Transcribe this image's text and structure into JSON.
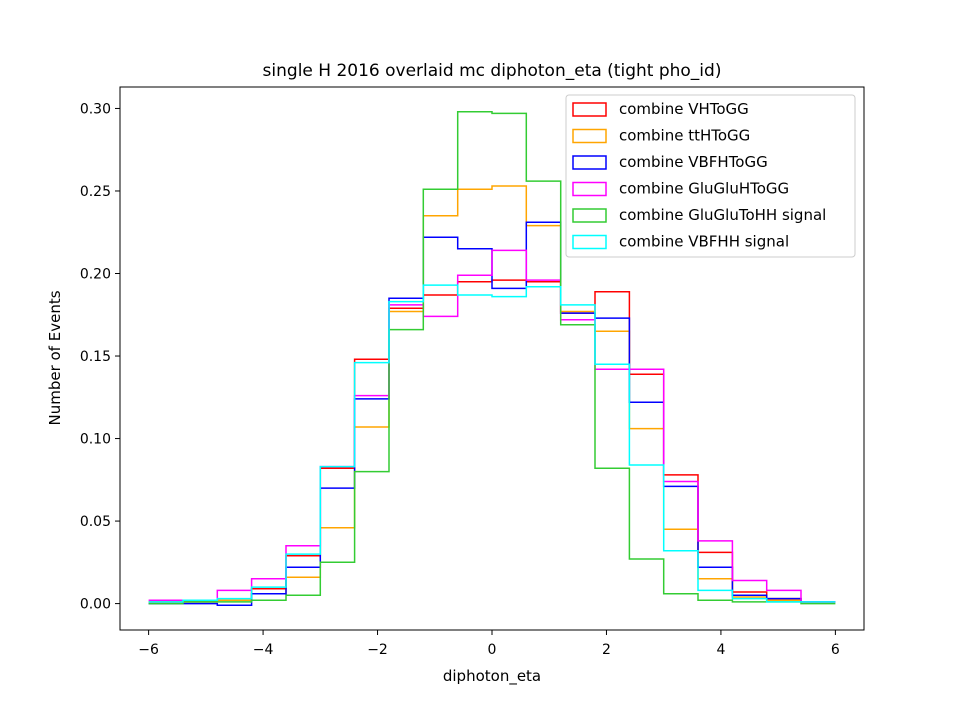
{
  "chart_data": {
    "type": "line",
    "style": "step-histogram",
    "title": "single H 2016 overlaid mc diphoton_eta (tight pho_id)",
    "xlabel": "diphoton_eta",
    "ylabel": "Number of Events",
    "xlim": [
      -6.5,
      6.5
    ],
    "ylim": [
      -0.016,
      0.313
    ],
    "xticks": [
      -6,
      -4,
      -2,
      0,
      2,
      4,
      6
    ],
    "xtick_labels": [
      "−6",
      "−4",
      "−2",
      "0",
      "2",
      "4",
      "6"
    ],
    "yticks": [
      0.0,
      0.05,
      0.1,
      0.15,
      0.2,
      0.25,
      0.3
    ],
    "ytick_labels": [
      "0.00",
      "0.05",
      "0.10",
      "0.15",
      "0.20",
      "0.25",
      "0.30"
    ],
    "bin_edges": [
      -6.0,
      -5.4,
      -4.8,
      -4.2,
      -3.6,
      -3.0,
      -2.4,
      -1.8,
      -1.2,
      -0.6,
      0.0,
      0.6,
      1.2,
      1.8,
      2.4,
      3.0,
      3.6,
      4.2,
      4.8,
      5.4,
      6.0
    ],
    "legend_position": "top-right",
    "grid": false,
    "series": [
      {
        "name": "combine VHToGG",
        "color": "#ff0000",
        "values": [
          0.001,
          0.001,
          0.002,
          0.009,
          0.029,
          0.082,
          0.148,
          0.179,
          0.187,
          0.195,
          0.196,
          0.195,
          0.176,
          0.189,
          0.139,
          0.078,
          0.031,
          0.007,
          0.003,
          0.001
        ]
      },
      {
        "name": "combine ttHToGG",
        "color": "#ffa500",
        "values": [
          0.001,
          0.001,
          0.002,
          0.006,
          0.016,
          0.046,
          0.107,
          0.177,
          0.235,
          0.251,
          0.253,
          0.229,
          0.177,
          0.165,
          0.106,
          0.045,
          0.015,
          0.004,
          0.002,
          0.001
        ]
      },
      {
        "name": "combine VBFHToGG",
        "color": "#0000ff",
        "values": [
          0.0,
          0.0,
          -0.001,
          0.006,
          0.022,
          0.07,
          0.124,
          0.185,
          0.222,
          0.215,
          0.191,
          0.231,
          0.176,
          0.173,
          0.122,
          0.071,
          0.022,
          0.005,
          0.003,
          0.001
        ]
      },
      {
        "name": "combine GluGluHToGG",
        "color": "#ff00ff",
        "values": [
          0.002,
          0.002,
          0.008,
          0.015,
          0.035,
          0.083,
          0.126,
          0.181,
          0.174,
          0.199,
          0.214,
          0.196,
          0.172,
          0.142,
          0.142,
          0.074,
          0.038,
          0.014,
          0.008,
          0.001
        ]
      },
      {
        "name": "combine GluGluToHH signal",
        "color": "#33cc33",
        "values": [
          0.0,
          0.001,
          0.001,
          0.002,
          0.005,
          0.025,
          0.08,
          0.166,
          0.251,
          0.298,
          0.297,
          0.256,
          0.169,
          0.082,
          0.027,
          0.006,
          0.002,
          0.001,
          0.001,
          0.0
        ]
      },
      {
        "name": "combine VBFHH signal",
        "color": "#00ffff",
        "values": [
          0.001,
          0.002,
          0.003,
          0.01,
          0.03,
          0.083,
          0.146,
          0.183,
          0.193,
          0.187,
          0.186,
          0.192,
          0.181,
          0.145,
          0.084,
          0.032,
          0.008,
          0.003,
          0.001,
          0.001
        ]
      }
    ]
  }
}
